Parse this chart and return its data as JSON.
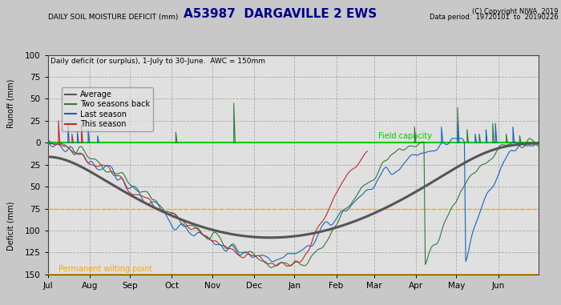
{
  "title": "A53987  DARGAVILLE 2 EWS",
  "copyright": "(C) Copyright NIWA  2019",
  "data_period": "Data period:  19720101  to  20190226",
  "subtitle_left": "DAILY SOIL MOISTURE DEFICIT (mm)",
  "subtitle_box": "Daily deficit (or surplus), 1-July to 30-June.  AWC = 150mm",
  "ylabel_top": "Runoff (mm)",
  "ylabel_bottom": "Deficit (mm)",
  "field_capacity_label": "Field capacity",
  "pwp_label": "Permanent wilting point",
  "legend_entries": [
    "Average",
    "Two seasons back",
    "Last season",
    "This season"
  ],
  "avg_color": "#555555",
  "two_back_color": "#2e7d32",
  "last_color": "#1565c0",
  "this_color": "#c62828",
  "field_capacity_color": "#00cc00",
  "pwp_color": "#ffa500",
  "dashed_75_color": "#ffa500",
  "months": [
    "Jul",
    "Aug",
    "Sep",
    "Oct",
    "Nov",
    "Dec",
    "Jan",
    "Feb",
    "Mar",
    "Apr",
    "May",
    "Jun"
  ],
  "title_color": "#00008b",
  "title_fontsize": 11,
  "label_fontsize": 7.5,
  "background_color": "#c8c8c8",
  "plot_bg_color": "#e0e0e0",
  "grid_color": "#aaaaaa",
  "ymax": 100,
  "ymin": -150,
  "yticks": [
    100,
    75,
    50,
    25,
    0,
    -25,
    -50,
    -75,
    -100,
    -125,
    -150
  ],
  "ytick_labels": [
    "100",
    "75",
    "50",
    "25",
    "0",
    "25",
    "50",
    "75",
    "100",
    "125",
    "150"
  ]
}
